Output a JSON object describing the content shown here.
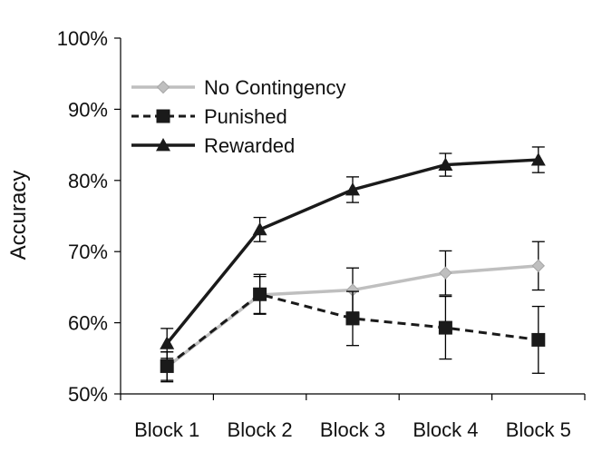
{
  "chart_data": {
    "type": "line",
    "title": "",
    "xlabel": "",
    "ylabel": "Accuracy",
    "ylim": [
      50,
      100
    ],
    "yticks": [
      "50%",
      "60%",
      "70%",
      "80%",
      "90%",
      "100%"
    ],
    "categories": [
      "Block 1",
      "Block 2",
      "Block 3",
      "Block 4",
      "Block 5"
    ],
    "legend_position": "top-left",
    "grid": false,
    "series": [
      {
        "name": "No Contingency",
        "marker": "diamond",
        "line_style": "solid",
        "color": "#bfbfbf",
        "values": [
          53.8,
          63.9,
          64.6,
          67.0,
          68.0
        ],
        "error": [
          2.1,
          2.6,
          3.1,
          3.1,
          3.4
        ]
      },
      {
        "name": "Punished",
        "marker": "square",
        "line_style": "dashed",
        "color": "#1a1a1a",
        "values": [
          53.9,
          64.0,
          60.6,
          59.3,
          57.6
        ],
        "error": [
          2.0,
          2.8,
          3.8,
          4.4,
          4.7
        ]
      },
      {
        "name": "Rewarded",
        "marker": "triangle",
        "line_style": "solid",
        "color": "#1a1a1a",
        "values": [
          57.1,
          73.1,
          78.7,
          82.2,
          82.9
        ],
        "error": [
          2.1,
          1.7,
          1.8,
          1.6,
          1.8
        ]
      }
    ]
  }
}
